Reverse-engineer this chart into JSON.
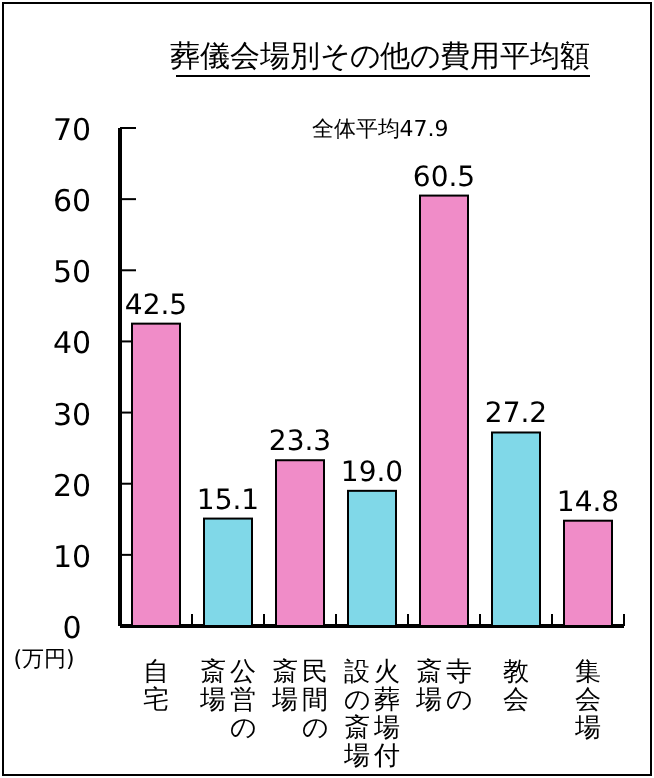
{
  "chart_data": {
    "type": "bar",
    "title": "葬儀会場別その他の費用平均額",
    "subtitle": "全体平均47.9",
    "ylabel": "(万円)",
    "categories": [
      "自宅",
      "公営の斎場",
      "民間の斎場",
      "火葬場付設の斎場",
      "寺の斎場",
      "教会",
      "集会場"
    ],
    "values": [
      42.5,
      15.1,
      23.3,
      19.0,
      60.5,
      27.2,
      14.8
    ],
    "value_labels": [
      "42.5",
      "15.1",
      "23.3",
      "19.0",
      "60.5",
      "27.2",
      "14.8"
    ],
    "colors": [
      "#f08cc8",
      "#80d8e8",
      "#f08cc8",
      "#80d8e8",
      "#f08cc8",
      "#80d8e8",
      "#f08cc8"
    ],
    "ylim": [
      0,
      70
    ],
    "yticks": [
      0,
      10,
      20,
      30,
      40,
      50,
      60,
      70
    ],
    "grid": false
  }
}
